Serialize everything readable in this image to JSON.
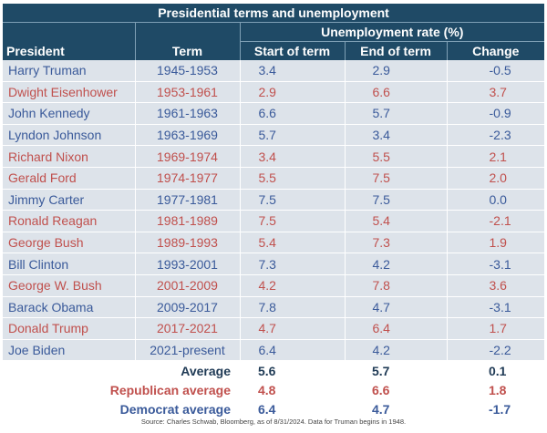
{
  "table": {
    "title": "Presidential terms and unemployment",
    "group_header": "Unemployment rate (%)",
    "columns": {
      "president": "President",
      "term": "Term",
      "start": "Start of term",
      "end": "End of term",
      "change": "Change"
    },
    "colors": {
      "democrat": "#3a5a9a",
      "republican": "#c0504d",
      "header_bg": "#1f4a66",
      "row_bg": "#dde3ea"
    },
    "rows": [
      {
        "president": "Harry Truman",
        "party": "democrat",
        "term": "1945-1953",
        "start": "3.4",
        "end": "2.9",
        "change": "-0.5"
      },
      {
        "president": "Dwight Eisenhower",
        "party": "republican",
        "term": "1953-1961",
        "start": "2.9",
        "end": "6.6",
        "change": "3.7"
      },
      {
        "president": "John Kennedy",
        "party": "democrat",
        "term": "1961-1963",
        "start": "6.6",
        "end": "5.7",
        "change": "-0.9"
      },
      {
        "president": "Lyndon Johnson",
        "party": "democrat",
        "term": "1963-1969",
        "start": "5.7",
        "end": "3.4",
        "change": "-2.3"
      },
      {
        "president": "Richard Nixon",
        "party": "republican",
        "term": "1969-1974",
        "start": "3.4",
        "end": "5.5",
        "change": "2.1"
      },
      {
        "president": "Gerald Ford",
        "party": "republican",
        "term": "1974-1977",
        "start": "5.5",
        "end": "7.5",
        "change": "2.0"
      },
      {
        "president": "Jimmy Carter",
        "party": "democrat",
        "term": "1977-1981",
        "start": "7.5",
        "end": "7.5",
        "change": "0.0"
      },
      {
        "president": "Ronald Reagan",
        "party": "republican",
        "term": "1981-1989",
        "start": "7.5",
        "end": "5.4",
        "change": "-2.1"
      },
      {
        "president": "George Bush",
        "party": "republican",
        "term": "1989-1993",
        "start": "5.4",
        "end": "7.3",
        "change": "1.9"
      },
      {
        "president": "Bill Clinton",
        "party": "democrat",
        "term": "1993-2001",
        "start": "7.3",
        "end": "4.2",
        "change": "-3.1"
      },
      {
        "president": "George W. Bush",
        "party": "republican",
        "term": "2001-2009",
        "start": "4.2",
        "end": "7.8",
        "change": "3.6"
      },
      {
        "president": "Barack Obama",
        "party": "democrat",
        "term": "2009-2017",
        "start": "7.8",
        "end": "4.7",
        "change": "-3.1"
      },
      {
        "president": "Donald Trump",
        "party": "republican",
        "term": "2017-2021",
        "start": "4.7",
        "end": "6.4",
        "change": "1.7"
      },
      {
        "president": "Joe Biden",
        "party": "democrat",
        "term": "2021-present",
        "start": "6.4",
        "end": "4.2",
        "change": "-2.2"
      }
    ],
    "averages": {
      "overall": {
        "label": "Average",
        "start": "5.6",
        "end": "5.7",
        "change": "0.1"
      },
      "republican": {
        "label": "Republican average",
        "start": "4.8",
        "end": "6.6",
        "change": "1.8"
      },
      "democrat": {
        "label": "Democrat average",
        "start": "6.4",
        "end": "4.7",
        "change": "-1.7"
      }
    }
  },
  "source": "Source: Charles Schwab, Bloomberg, as of 8/31/2024. Data for Truman begins in 1948."
}
